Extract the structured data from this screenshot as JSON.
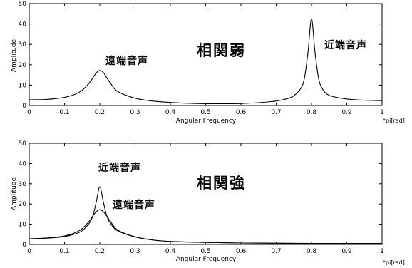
{
  "chart_data": [
    {
      "type": "line",
      "xlabel": "Angular Frequency",
      "ylabel": "Amplitude",
      "x_unit": "*pi[rad]",
      "xlim": [
        0,
        1
      ],
      "ylim": [
        0,
        50
      ],
      "x_ticks": [
        "0",
        "0.1",
        "0.2",
        "0.3",
        "0.4",
        "0.5",
        "0.6",
        "0.7",
        "0.8",
        "0.9",
        "1"
      ],
      "y_ticks": [
        "0",
        "10",
        "20",
        "30",
        "40",
        "50"
      ],
      "grid": false,
      "annotations": {
        "main": "相関弱",
        "peak_a": "遠端音声",
        "peak_b": "近端音声"
      },
      "series": [
        {
          "color": "#000000",
          "x": [
            0,
            0.05,
            0.1,
            0.13,
            0.15,
            0.17,
            0.18,
            0.19,
            0.2,
            0.21,
            0.22,
            0.23,
            0.25,
            0.3,
            0.35,
            0.4,
            0.45,
            0.5,
            0.55,
            0.6,
            0.65,
            0.7,
            0.73,
            0.75,
            0.77,
            0.78,
            0.79,
            0.8,
            0.81,
            0.82,
            0.83,
            0.85,
            0.9,
            0.95,
            1.0
          ],
          "y": [
            2.8,
            3.0,
            4.0,
            5.5,
            7.5,
            11.0,
            13.5,
            16.0,
            17.2,
            16.2,
            13.5,
            11.0,
            7.0,
            3.6,
            2.2,
            1.5,
            1.1,
            0.9,
            0.9,
            1.0,
            1.4,
            2.2,
            3.3,
            4.8,
            8.5,
            13.5,
            26.0,
            42.5,
            26.0,
            13.5,
            8.5,
            5.0,
            3.2,
            2.6,
            2.4
          ]
        }
      ]
    },
    {
      "type": "line",
      "xlabel": "Angular Frequency",
      "ylabel": "Amplitude",
      "x_unit": "*pi[rad]",
      "xlim": [
        0,
        1
      ],
      "ylim": [
        0,
        50
      ],
      "x_ticks": [
        "0",
        "0.1",
        "0.2",
        "0.3",
        "0.4",
        "0.5",
        "0.6",
        "0.7",
        "0.8",
        "0.9",
        "1"
      ],
      "y_ticks": [
        "0",
        "10",
        "20",
        "30",
        "40",
        "50"
      ],
      "grid": false,
      "annotations": {
        "main": "相関強",
        "peak_a": "近端音声",
        "peak_b": "遠端音声"
      },
      "series": [
        {
          "color": "#000000",
          "x": [
            0,
            0.05,
            0.1,
            0.13,
            0.15,
            0.17,
            0.18,
            0.19,
            0.2,
            0.21,
            0.22,
            0.23,
            0.25,
            0.3,
            0.35,
            0.4,
            0.5,
            0.6,
            0.7,
            0.8,
            0.9,
            1.0
          ],
          "y": [
            2.8,
            3.2,
            4.2,
            5.8,
            7.8,
            11.5,
            14.0,
            16.2,
            17.2,
            16.2,
            14.0,
            11.5,
            7.2,
            3.8,
            2.2,
            1.5,
            1.0,
            0.7,
            0.6,
            0.5,
            0.5,
            0.5
          ]
        },
        {
          "color": "#000000",
          "x": [
            0,
            0.05,
            0.1,
            0.13,
            0.15,
            0.17,
            0.18,
            0.19,
            0.2,
            0.21,
            0.22,
            0.23,
            0.25,
            0.3,
            0.35,
            0.4,
            0.5,
            0.6,
            0.7,
            0.8,
            0.9,
            1.0
          ],
          "y": [
            2.8,
            3.1,
            3.9,
            5.2,
            6.8,
            10.5,
            14.0,
            21.0,
            28.5,
            21.0,
            14.0,
            10.5,
            6.8,
            3.7,
            2.2,
            1.5,
            1.0,
            0.7,
            0.6,
            0.5,
            0.5,
            0.5
          ]
        }
      ]
    }
  ]
}
